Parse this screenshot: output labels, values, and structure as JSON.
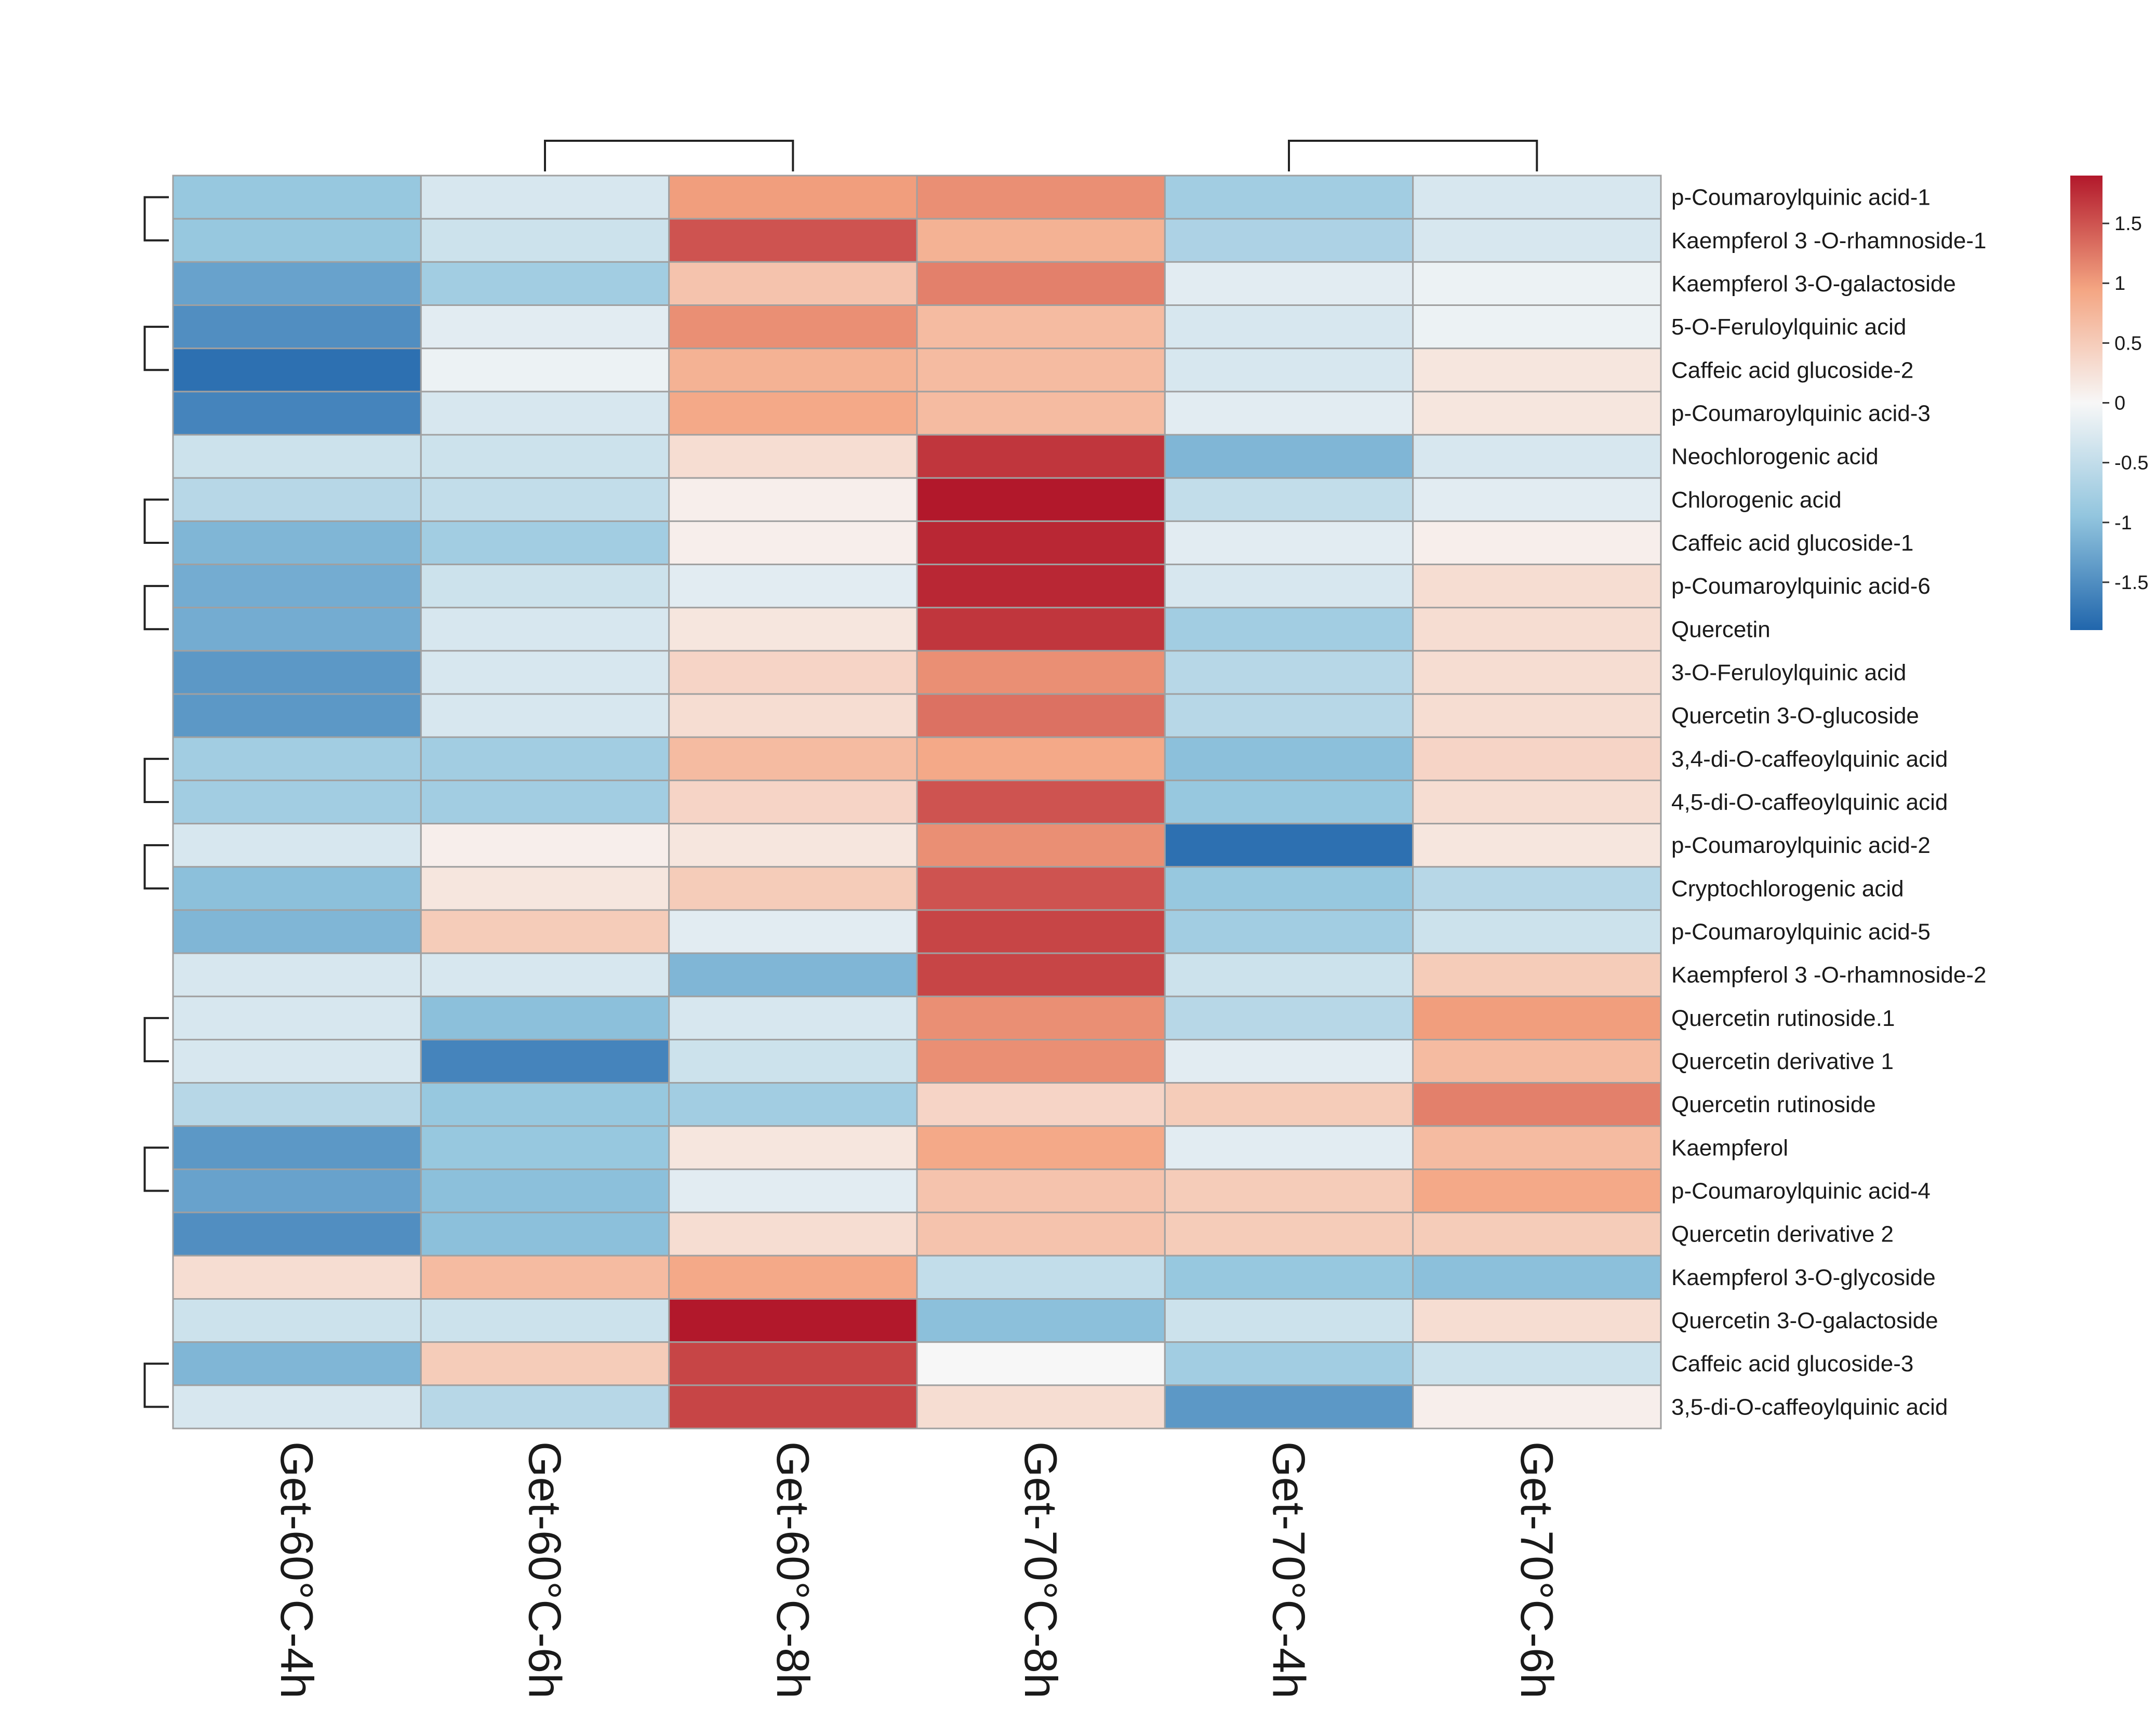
{
  "chart_data": {
    "type": "heatmap",
    "title": "",
    "columns": [
      "Get-60°C-4h",
      "Get-60°C-6h",
      "Get-60°C-8h",
      "Get-70°C-8h",
      "Get-70°C-4h",
      "Get-70°C-6h"
    ],
    "rows": [
      "p-Coumaroylquinic acid-1",
      "Kaempferol 3 -O-rhamnoside-1",
      "Kaempferol 3-O-galactoside",
      "5-O-Feruloylquinic acid",
      "Caffeic acid glucoside-2",
      "p-Coumaroylquinic acid-3",
      "Neochlorogenic acid",
      "Chlorogenic acid",
      "Caffeic acid glucoside-1",
      "p-Coumaroylquinic acid-6",
      "Quercetin",
      "3-O-Feruloylquinic acid",
      "Quercetin 3-O-glucoside",
      "3,4-di-O-caffeoylquinic acid",
      "4,5-di-O-caffeoylquinic acid",
      "p-Coumaroylquinic acid-2",
      "Cryptochlorogenic acid",
      "p-Coumaroylquinic acid-5",
      "Kaempferol 3 -O-rhamnoside-2",
      "Quercetin rutinoside.1",
      "Quercetin derivative 1",
      "Quercetin rutinoside",
      "Kaempferol",
      "p-Coumaroylquinic acid-4",
      "Quercetin derivative 2",
      "Kaempferol 3-O-glycoside",
      "Quercetin 3-O-galactoside",
      "Caffeic acid glucoside-3",
      "3,5-di-O-caffeoylquinic acid"
    ],
    "values": [
      [
        -0.9,
        -0.3,
        1.0,
        1.1,
        -0.8,
        -0.3
      ],
      [
        -0.9,
        -0.4,
        1.5,
        0.8,
        -0.7,
        -0.3
      ],
      [
        -1.3,
        -0.8,
        0.6,
        1.2,
        -0.2,
        -0.1
      ],
      [
        -1.5,
        -0.2,
        1.1,
        0.7,
        -0.3,
        -0.1
      ],
      [
        -1.8,
        -0.1,
        0.8,
        0.7,
        -0.3,
        0.2
      ],
      [
        -1.6,
        -0.3,
        0.9,
        0.7,
        -0.2,
        0.2
      ],
      [
        -0.4,
        -0.4,
        0.3,
        1.7,
        -1.1,
        -0.3
      ],
      [
        -0.6,
        -0.5,
        0.1,
        1.9,
        -0.5,
        -0.2
      ],
      [
        -1.1,
        -0.8,
        0.1,
        1.8,
        -0.2,
        0.1
      ],
      [
        -1.2,
        -0.4,
        -0.2,
        1.8,
        -0.3,
        0.3
      ],
      [
        -1.2,
        -0.3,
        0.2,
        1.7,
        -0.8,
        0.3
      ],
      [
        -1.4,
        -0.3,
        0.4,
        1.1,
        -0.6,
        0.3
      ],
      [
        -1.4,
        -0.3,
        0.3,
        1.3,
        -0.6,
        0.3
      ],
      [
        -0.8,
        -0.8,
        0.7,
        0.9,
        -1.0,
        0.4
      ],
      [
        -0.8,
        -0.8,
        0.4,
        1.5,
        -0.9,
        0.3
      ],
      [
        -0.3,
        0.1,
        0.2,
        1.1,
        -1.8,
        0.2
      ],
      [
        -1.0,
        0.2,
        0.5,
        1.5,
        -0.9,
        -0.6
      ],
      [
        -1.1,
        0.5,
        -0.2,
        1.6,
        -0.8,
        -0.4
      ],
      [
        -0.3,
        -0.3,
        -1.1,
        1.6,
        -0.4,
        0.5
      ],
      [
        -0.3,
        -1.0,
        -0.3,
        1.1,
        -0.6,
        1.0
      ],
      [
        -0.3,
        -1.6,
        -0.4,
        1.1,
        -0.2,
        0.7
      ],
      [
        -0.6,
        -0.9,
        -0.8,
        0.4,
        0.5,
        1.2
      ],
      [
        -1.4,
        -0.9,
        0.2,
        0.9,
        -0.2,
        0.7
      ],
      [
        -1.3,
        -1.0,
        -0.2,
        0.6,
        0.5,
        0.9
      ],
      [
        -1.5,
        -1.0,
        0.3,
        0.6,
        0.5,
        0.5
      ],
      [
        0.3,
        0.7,
        0.9,
        -0.5,
        -0.9,
        -1.0
      ],
      [
        -0.4,
        -0.4,
        1.9,
        -1.0,
        -0.4,
        0.3
      ],
      [
        -1.1,
        0.5,
        1.6,
        0.0,
        -0.8,
        -0.4
      ],
      [
        -0.3,
        -0.6,
        1.6,
        0.3,
        -1.4,
        0.1
      ]
    ],
    "legend": {
      "range": [
        -1.9,
        1.9
      ],
      "ticks": [
        1.5,
        1,
        0.5,
        0,
        -0.5,
        -1,
        -1.5
      ],
      "tick_labels": [
        "1.5",
        "1",
        "0.5",
        "0",
        "-0.5",
        "-1",
        "-1.5"
      ],
      "placement": "top-right"
    },
    "colors": {
      "low": "#2166ac",
      "mid": "#f7f7f7",
      "high": "#b2182b"
    },
    "row_dendrogram": [
      [
        0,
        1
      ],
      [
        3,
        4
      ],
      [
        31,
        5
      ],
      [
        32,
        2
      ],
      [
        33,
        30
      ],
      [
        7,
        8
      ],
      [
        9,
        10
      ],
      [
        35,
        36
      ],
      [
        37,
        11
      ],
      [
        38,
        12
      ],
      [
        6,
        39
      ],
      [
        13,
        14
      ],
      [
        41,
        40
      ],
      [
        42,
        34
      ],
      [
        15,
        16
      ],
      [
        44,
        17
      ],
      [
        43,
        45
      ],
      [
        19,
        20
      ],
      [
        47,
        18
      ],
      [
        22,
        23
      ],
      [
        49,
        24
      ],
      [
        50,
        21
      ],
      [
        48,
        51
      ],
      [
        46,
        52
      ],
      [
        27,
        28
      ],
      [
        26,
        54
      ],
      [
        25,
        55
      ],
      [
        53,
        56
      ]
    ],
    "col_dendrogram": [
      [
        1,
        2
      ],
      [
        0,
        58
      ],
      [
        4,
        5
      ],
      [
        3,
        60
      ],
      [
        59,
        61
      ]
    ]
  }
}
